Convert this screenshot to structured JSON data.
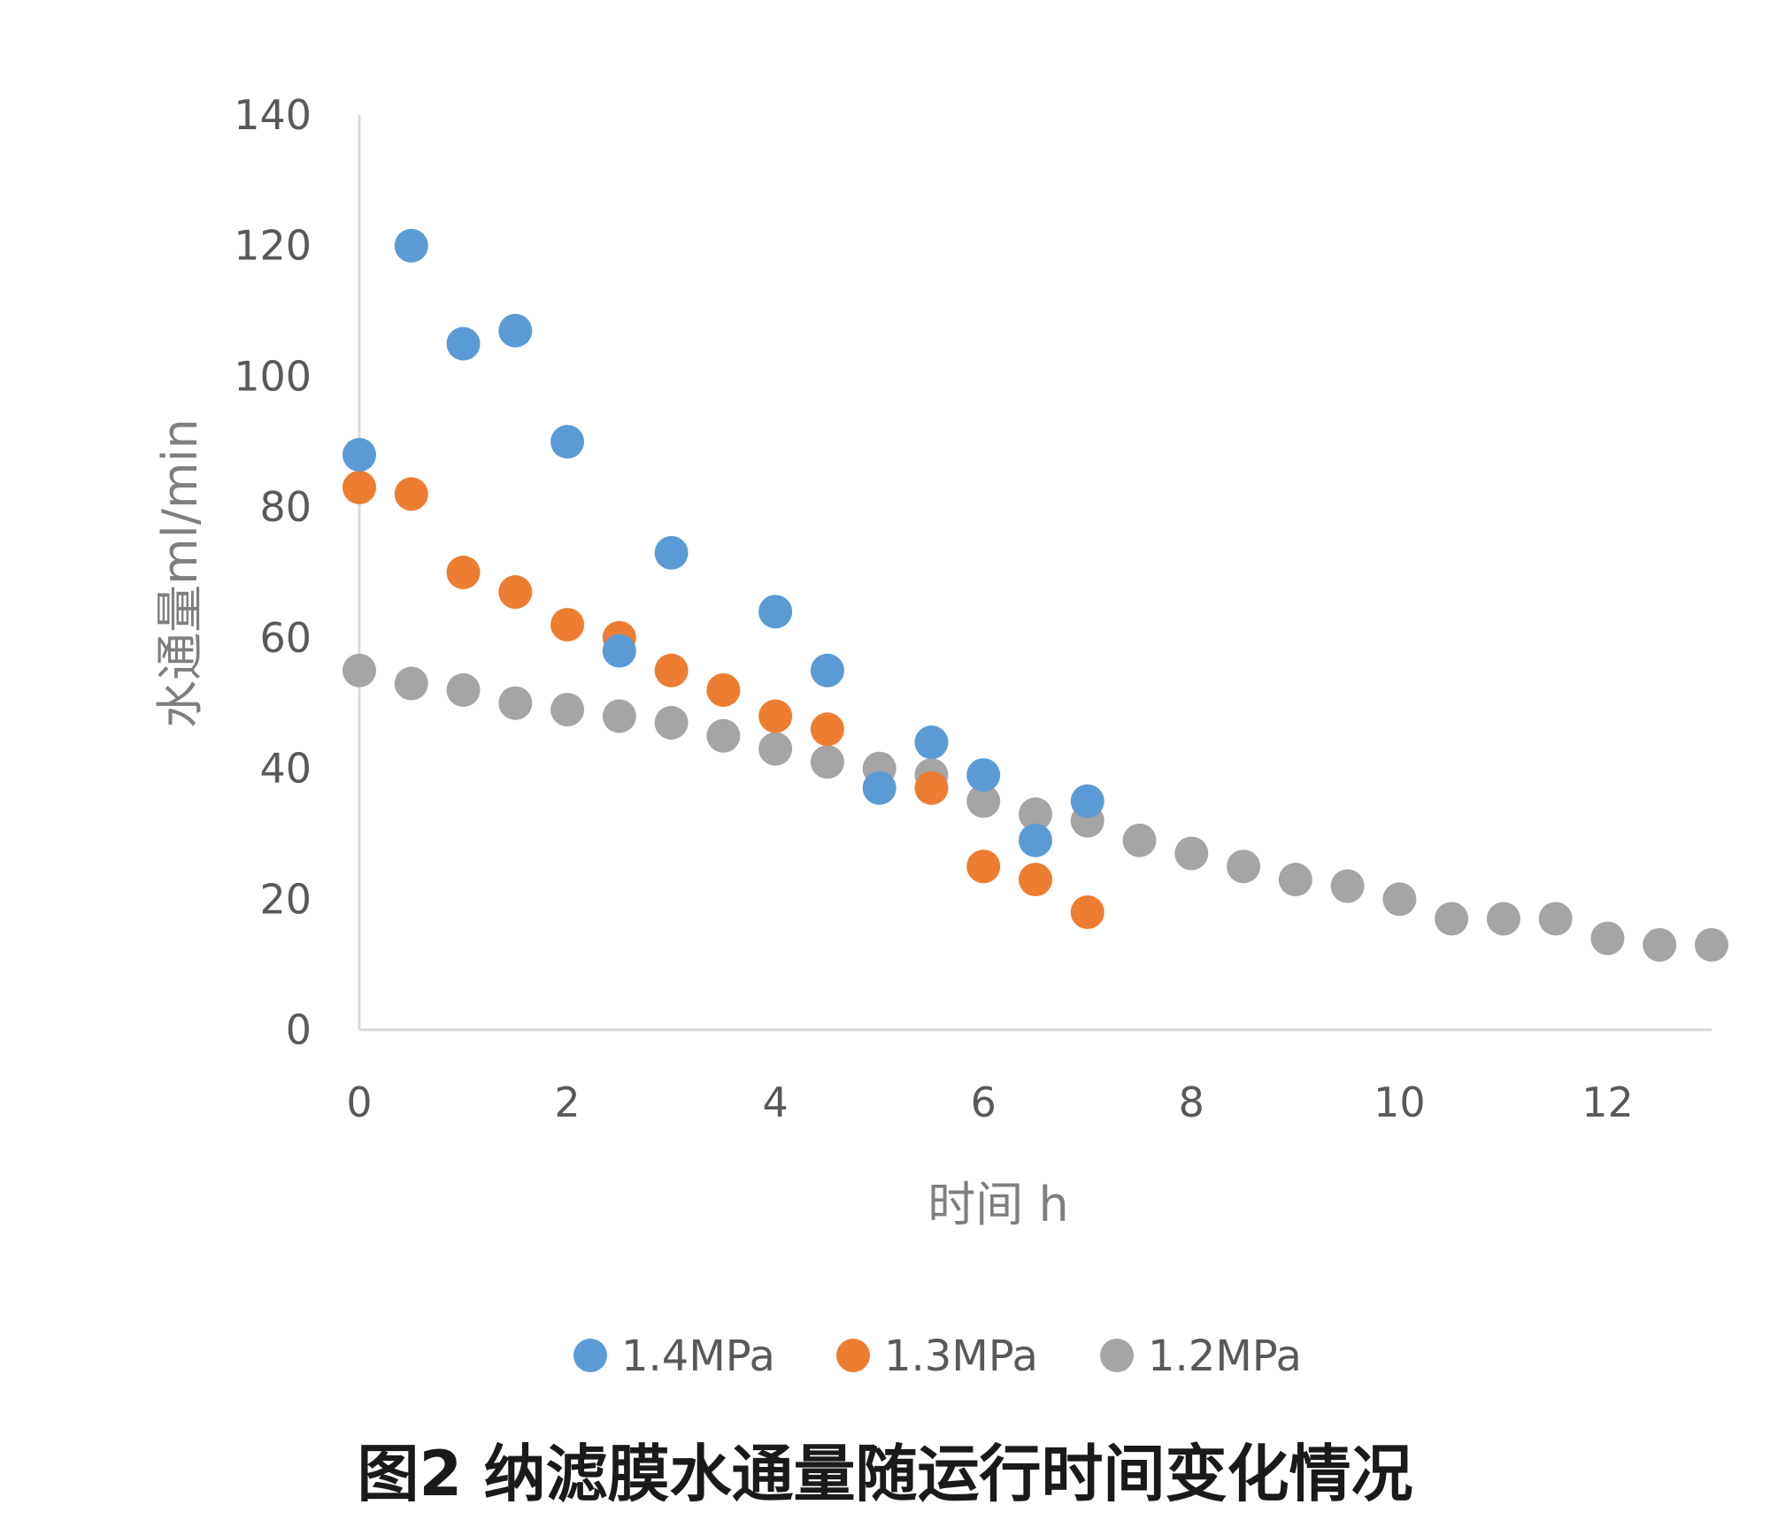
{
  "chart_data": {
    "type": "scatter",
    "title": "",
    "caption": "图2 纳滤膜水通量随运行时间变化情况",
    "xlabel": "时间 h",
    "ylabel": "水通量ml/min",
    "xlim": [
      0,
      13
    ],
    "ylim": [
      0,
      140
    ],
    "xticks": [
      0,
      2,
      4,
      6,
      8,
      10,
      12
    ],
    "yticks": [
      0,
      20,
      40,
      60,
      80,
      100,
      120,
      140
    ],
    "grid": false,
    "legend_position": "bottom",
    "series": [
      {
        "name": "1.4MPa",
        "color": "#5b9bd5",
        "points": [
          [
            0,
            88
          ],
          [
            0.5,
            120
          ],
          [
            1,
            105
          ],
          [
            1.5,
            107
          ],
          [
            2,
            90
          ],
          [
            2.5,
            58
          ],
          [
            3,
            73
          ],
          [
            4,
            64
          ],
          [
            4.5,
            55
          ],
          [
            5,
            37
          ],
          [
            5.5,
            44
          ],
          [
            6,
            39
          ],
          [
            6.5,
            29
          ],
          [
            7,
            35
          ]
        ]
      },
      {
        "name": "1.3MPa",
        "color": "#ed7d31",
        "points": [
          [
            0,
            83
          ],
          [
            0.5,
            82
          ],
          [
            1,
            70
          ],
          [
            1.5,
            67
          ],
          [
            2,
            62
          ],
          [
            2.5,
            60
          ],
          [
            3,
            55
          ],
          [
            3.5,
            52
          ],
          [
            4,
            48
          ],
          [
            4.5,
            46
          ],
          [
            5.5,
            37
          ],
          [
            6,
            25
          ],
          [
            6.5,
            23
          ],
          [
            7,
            18
          ]
        ]
      },
      {
        "name": "1.2MPa",
        "color": "#a5a5a5",
        "points": [
          [
            0,
            55
          ],
          [
            0.5,
            53
          ],
          [
            1,
            52
          ],
          [
            1.5,
            50
          ],
          [
            2,
            49
          ],
          [
            2.5,
            48
          ],
          [
            3,
            47
          ],
          [
            3.5,
            45
          ],
          [
            4,
            43
          ],
          [
            4.5,
            41
          ],
          [
            5,
            40
          ],
          [
            5.5,
            39
          ],
          [
            6,
            35
          ],
          [
            6.5,
            33
          ],
          [
            7,
            32
          ],
          [
            7.5,
            29
          ],
          [
            8,
            27
          ],
          [
            8.5,
            25
          ],
          [
            9,
            23
          ],
          [
            9.5,
            22
          ],
          [
            10,
            20
          ],
          [
            10.5,
            17
          ],
          [
            11,
            17
          ],
          [
            11.5,
            17
          ],
          [
            12,
            14
          ],
          [
            12.5,
            13
          ],
          [
            13,
            13
          ]
        ]
      }
    ]
  }
}
